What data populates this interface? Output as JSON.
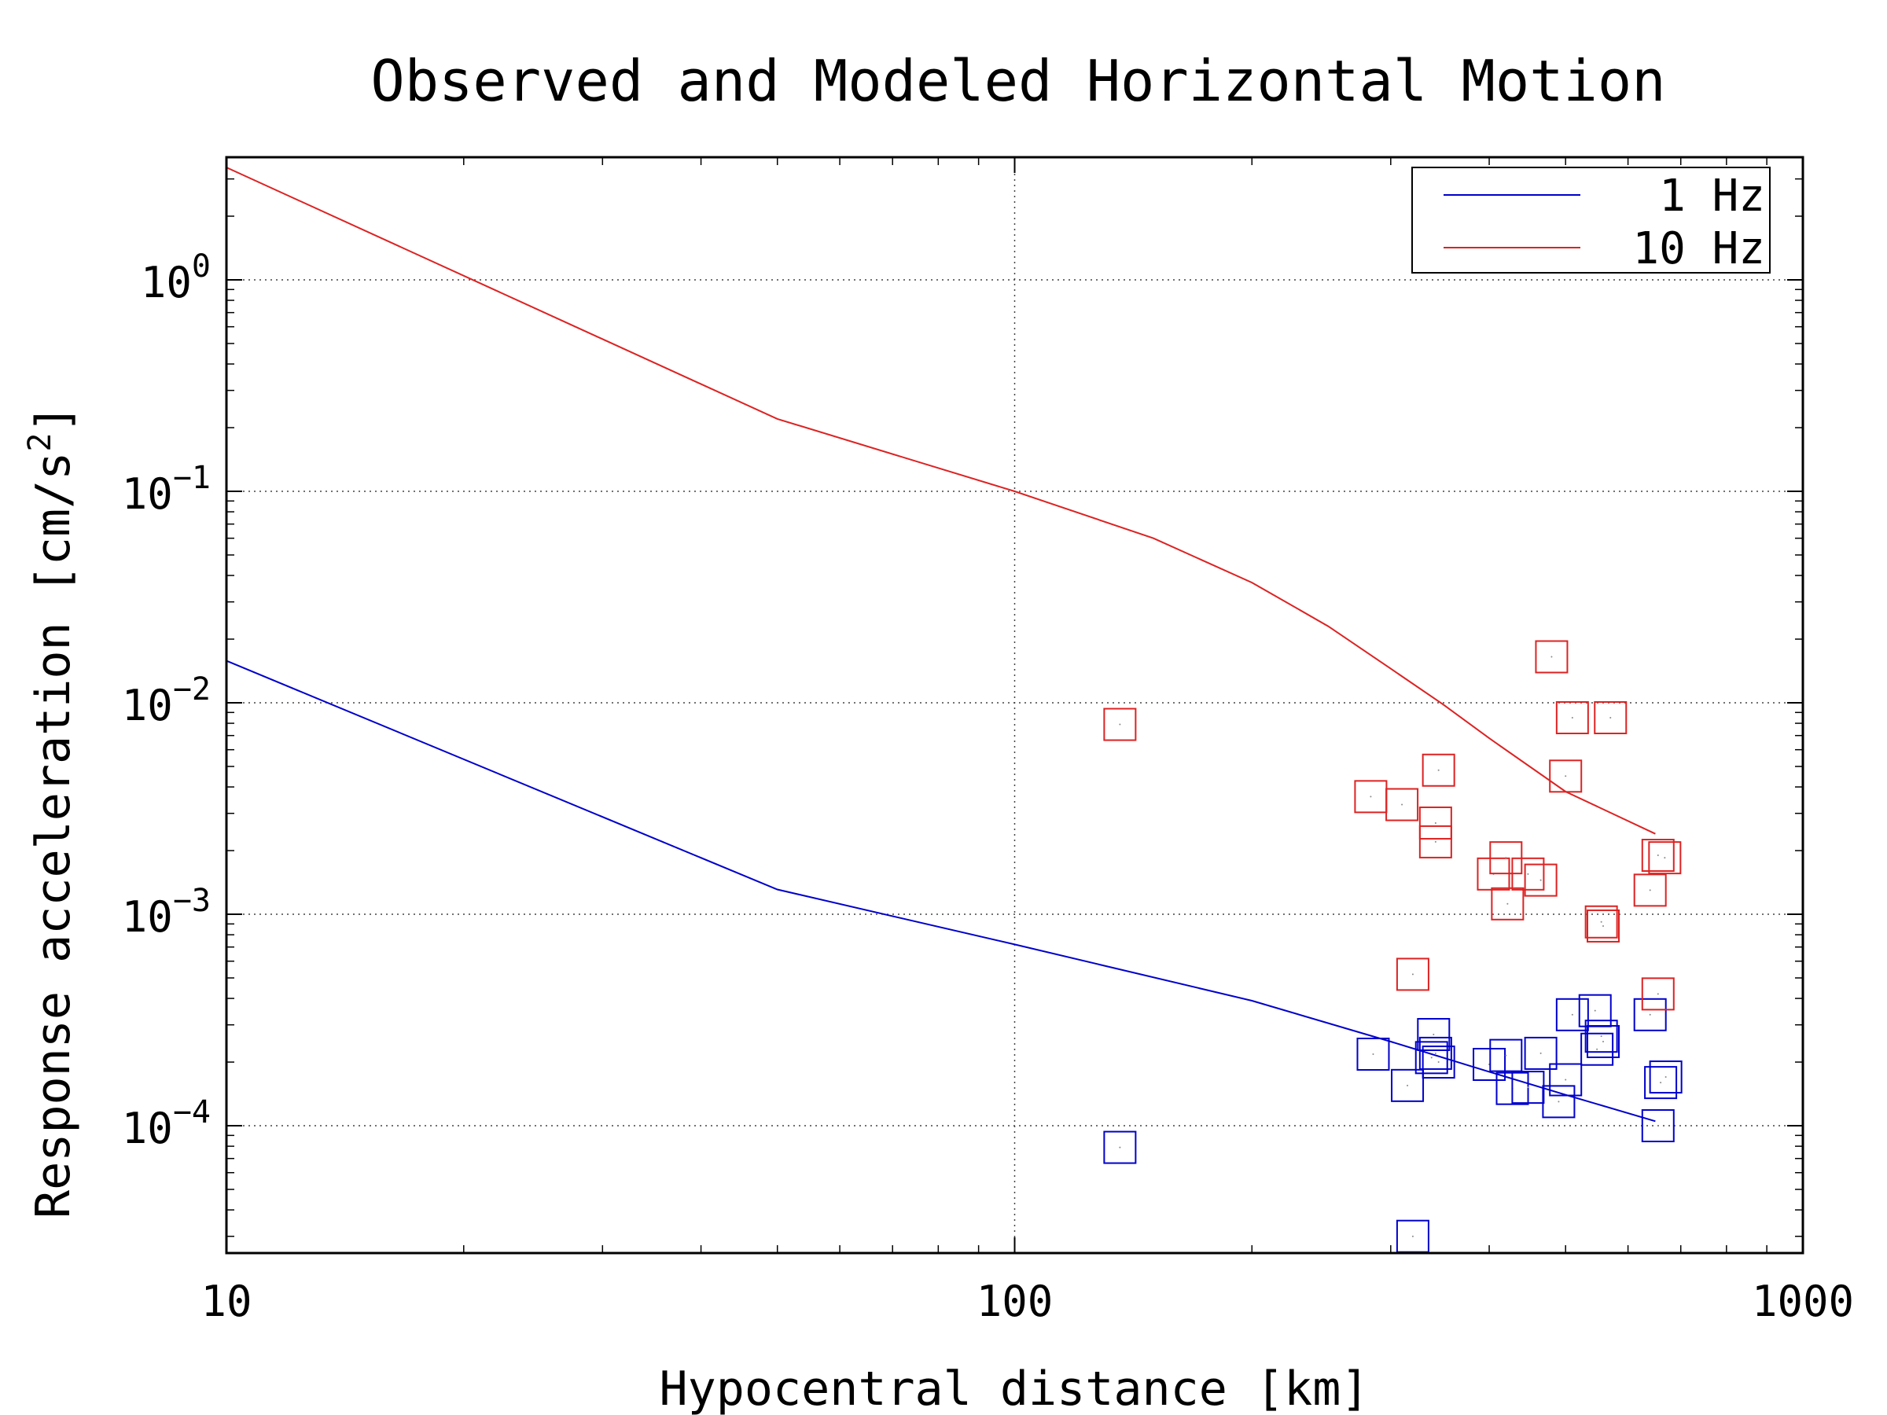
{
  "chart_data": {
    "type": "scatter",
    "title": "Observed and Modeled Horizontal Motion",
    "xlabel": "Hypocentral distance [km]",
    "ylabel": "Response acceleration [cm/s",
    "ylabel_sup": "2",
    "ylabel_end": "]",
    "x_scale": "log",
    "y_scale": "log",
    "xlim": [
      10,
      1000
    ],
    "ylim": [
      2.5e-05,
      3.8
    ],
    "grid": true,
    "legend_position": "top-right",
    "x_ticks": [
      {
        "value": 10,
        "label": "10"
      },
      {
        "value": 100,
        "label": "100"
      },
      {
        "value": 1000,
        "label": "1000"
      }
    ],
    "y_ticks": [
      {
        "value": 0.0001,
        "base": "10",
        "exp": "−4"
      },
      {
        "value": 0.001,
        "base": "10",
        "exp": "−3"
      },
      {
        "value": 0.01,
        "base": "10",
        "exp": "−2"
      },
      {
        "value": 0.1,
        "base": "10",
        "exp": "−1"
      },
      {
        "value": 1,
        "base": "10",
        "exp": "0"
      }
    ],
    "series": [
      {
        "name": "1 Hz",
        "color": "#0000cc",
        "model": [
          [
            10,
            0.0158
          ],
          [
            50,
            0.00131
          ],
          [
            100,
            0.00072
          ],
          [
            200,
            0.00039
          ],
          [
            300,
            0.00025
          ],
          [
            400,
            0.00018
          ],
          [
            500,
            0.00014
          ],
          [
            650,
            0.000105
          ]
        ],
        "observed": [
          [
            136,
            7.9e-05
          ],
          [
            320,
            3e-05
          ],
          [
            285,
            0.000218
          ],
          [
            315,
            0.000155
          ],
          [
            340,
            0.00027
          ],
          [
            338,
            0.00021
          ],
          [
            342,
            0.00022
          ],
          [
            345,
            0.0002
          ],
          [
            400,
            0.000195
          ],
          [
            420,
            0.000215
          ],
          [
            428,
            0.00015
          ],
          [
            448,
            0.000152
          ],
          [
            465,
            0.00022
          ],
          [
            490,
            0.00013
          ],
          [
            500,
            0.000165
          ],
          [
            510,
            0.000335
          ],
          [
            545,
            0.00035
          ],
          [
            548,
            0.00023
          ],
          [
            555,
            0.000265
          ],
          [
            558,
            0.00025
          ],
          [
            640,
            0.000335
          ],
          [
            655,
            0.0001
          ],
          [
            660,
            0.00016
          ],
          [
            670,
            0.00017
          ]
        ]
      },
      {
        "name": "10 Hz",
        "color": "#dd2222",
        "model": [
          [
            10,
            3.4
          ],
          [
            50,
            0.22
          ],
          [
            100,
            0.1
          ],
          [
            150,
            0.06
          ],
          [
            200,
            0.037
          ],
          [
            250,
            0.023
          ],
          [
            300,
            0.0145
          ],
          [
            350,
            0.0098
          ],
          [
            400,
            0.0068
          ],
          [
            500,
            0.0038
          ],
          [
            650,
            0.0024
          ]
        ],
        "observed": [
          [
            136,
            0.0079
          ],
          [
            283,
            0.0036
          ],
          [
            310,
            0.0033
          ],
          [
            320,
            0.00052
          ],
          [
            345,
            0.0048
          ],
          [
            342,
            0.0027
          ],
          [
            342,
            0.0022
          ],
          [
            405,
            0.00155
          ],
          [
            420,
            0.00185
          ],
          [
            422,
            0.00112
          ],
          [
            448,
            0.00155
          ],
          [
            465,
            0.00145
          ],
          [
            480,
            0.0165
          ],
          [
            500,
            0.0045
          ],
          [
            510,
            0.0085
          ],
          [
            555,
            0.00092
          ],
          [
            558,
            0.00088
          ],
          [
            570,
            0.0085
          ],
          [
            640,
            0.0013
          ],
          [
            655,
            0.0019
          ],
          [
            668,
            0.00185
          ],
          [
            655,
            0.00042
          ]
        ]
      }
    ]
  }
}
